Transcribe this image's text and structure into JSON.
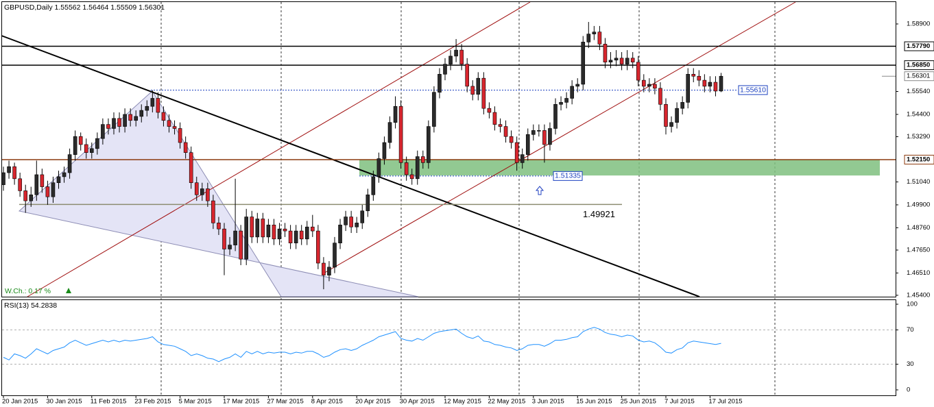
{
  "chart_data": [
    {
      "type": "candlestick",
      "title": "GBPUSD,Daily 1.55562 1.56464 1.55509 1.56301",
      "categories": [
        "20 Jan 2015",
        null,
        null,
        null,
        null,
        null,
        null,
        null,
        "30 Jan 2015",
        null,
        null,
        null,
        null,
        null,
        null,
        null,
        "11 Feb 2015",
        null,
        null,
        null,
        null,
        null,
        null,
        null,
        "23 Feb 2015",
        null,
        null,
        null,
        null,
        null,
        null,
        null,
        "5 Mar 2015",
        null,
        null,
        null,
        null,
        null,
        null,
        null,
        "17 Mar 2015",
        null,
        null,
        null,
        null,
        null,
        null,
        null,
        "27 Mar 2015",
        null,
        null,
        null,
        null,
        null,
        null,
        null,
        "8 Apr 2015",
        null,
        null,
        null,
        null,
        null,
        null,
        null,
        "20 Apr 2015",
        null,
        null,
        null,
        null,
        null,
        null,
        null,
        "30 Apr 2015",
        null,
        null,
        null,
        null,
        null,
        null,
        null,
        "12 May 2015",
        null,
        null,
        null,
        null,
        null,
        null,
        null,
        "22 May 2015",
        null,
        null,
        null,
        null,
        null,
        null,
        null,
        "3 Jun 2015",
        null,
        null,
        null,
        null,
        null,
        null,
        null,
        "15 Jun 2015",
        null,
        null,
        null,
        null,
        null,
        null,
        null,
        "25 Jun 2015",
        null,
        null,
        null,
        null,
        null,
        null,
        null,
        "7 Jul 2015",
        null,
        null,
        null,
        null,
        null,
        null,
        null,
        "17 Jul 2015",
        null,
        null
      ],
      "ohlc": [
        [
          1.509,
          1.518,
          1.506,
          1.515
        ],
        [
          1.515,
          1.521,
          1.512,
          1.518
        ],
        [
          1.518,
          1.52,
          1.509,
          1.512
        ],
        [
          1.512,
          1.515,
          1.503,
          1.506
        ],
        [
          1.506,
          1.509,
          1.495,
          1.501
        ],
        [
          1.501,
          1.508,
          1.498,
          1.504
        ],
        [
          1.504,
          1.521,
          1.501,
          1.514
        ],
        [
          1.514,
          1.517,
          1.505,
          1.508
        ],
        [
          1.508,
          1.511,
          1.499,
          1.503
        ],
        [
          1.503,
          1.513,
          1.5,
          1.51
        ],
        [
          1.51,
          1.516,
          1.507,
          1.513
        ],
        [
          1.513,
          1.518,
          1.51,
          1.515
        ],
        [
          1.515,
          1.527,
          1.512,
          1.524
        ],
        [
          1.524,
          1.536,
          1.521,
          1.533
        ],
        [
          1.533,
          1.535,
          1.526,
          1.529
        ],
        [
          1.529,
          1.532,
          1.522,
          1.525
        ],
        [
          1.525,
          1.53,
          1.522,
          1.527
        ],
        [
          1.527,
          1.535,
          1.524,
          1.532
        ],
        [
          1.532,
          1.542,
          1.529,
          1.539
        ],
        [
          1.539,
          1.542,
          1.534,
          1.537
        ],
        [
          1.537,
          1.545,
          1.534,
          1.542
        ],
        [
          1.542,
          1.545,
          1.535,
          1.538
        ],
        [
          1.538,
          1.547,
          1.535,
          1.544
        ],
        [
          1.544,
          1.547,
          1.538,
          1.541
        ],
        [
          1.541,
          1.546,
          1.538,
          1.543
        ],
        [
          1.543,
          1.549,
          1.54,
          1.546
        ],
        [
          1.546,
          1.551,
          1.543,
          1.548
        ],
        [
          1.548,
          1.556,
          1.545,
          1.552
        ],
        [
          1.552,
          1.555,
          1.542,
          1.545
        ],
        [
          1.545,
          1.548,
          1.538,
          1.541
        ],
        [
          1.541,
          1.544,
          1.535,
          1.538
        ],
        [
          1.538,
          1.541,
          1.534,
          1.537
        ],
        [
          1.537,
          1.54,
          1.527,
          1.53
        ],
        [
          1.53,
          1.533,
          1.522,
          1.525
        ],
        [
          1.525,
          1.528,
          1.507,
          1.51
        ],
        [
          1.51,
          1.513,
          1.501,
          1.504
        ],
        [
          1.504,
          1.51,
          1.501,
          1.507
        ],
        [
          1.507,
          1.51,
          1.498,
          1.501
        ],
        [
          1.501,
          1.504,
          1.487,
          1.49
        ],
        [
          1.49,
          1.493,
          1.484,
          1.487
        ],
        [
          1.487,
          1.49,
          1.464,
          1.477
        ],
        [
          1.477,
          1.483,
          1.474,
          1.479
        ],
        [
          1.479,
          1.512,
          1.476,
          1.486
        ],
        [
          1.486,
          1.489,
          1.469,
          1.472
        ],
        [
          1.472,
          1.497,
          1.469,
          1.493
        ],
        [
          1.493,
          1.496,
          1.48,
          1.483
        ],
        [
          1.483,
          1.495,
          1.48,
          1.492
        ],
        [
          1.492,
          1.495,
          1.48,
          1.483
        ],
        [
          1.483,
          1.492,
          1.48,
          1.489
        ],
        [
          1.489,
          1.492,
          1.479,
          1.482
        ],
        [
          1.482,
          1.49,
          1.479,
          1.487
        ],
        [
          1.487,
          1.49,
          1.483,
          1.486
        ],
        [
          1.486,
          1.489,
          1.477,
          1.48
        ],
        [
          1.48,
          1.489,
          1.477,
          1.486
        ],
        [
          1.486,
          1.489,
          1.479,
          1.482
        ],
        [
          1.482,
          1.491,
          1.479,
          1.488
        ],
        [
          1.488,
          1.494,
          1.483,
          1.486
        ],
        [
          1.486,
          1.489,
          1.467,
          1.47
        ],
        [
          1.47,
          1.473,
          1.457,
          1.464
        ],
        [
          1.464,
          1.471,
          1.461,
          1.468
        ],
        [
          1.468,
          1.483,
          1.465,
          1.48
        ],
        [
          1.48,
          1.492,
          1.477,
          1.489
        ],
        [
          1.489,
          1.496,
          1.486,
          1.493
        ],
        [
          1.493,
          1.496,
          1.485,
          1.488
        ],
        [
          1.488,
          1.493,
          1.485,
          1.49
        ],
        [
          1.49,
          1.499,
          1.487,
          1.496
        ],
        [
          1.496,
          1.507,
          1.493,
          1.504
        ],
        [
          1.504,
          1.516,
          1.501,
          1.513
        ],
        [
          1.513,
          1.525,
          1.51,
          1.522
        ],
        [
          1.522,
          1.533,
          1.519,
          1.53
        ],
        [
          1.53,
          1.543,
          1.527,
          1.54
        ],
        [
          1.54,
          1.553,
          1.537,
          1.548
        ],
        [
          1.548,
          1.551,
          1.517,
          1.52
        ],
        [
          1.52,
          1.523,
          1.511,
          1.514
        ],
        [
          1.514,
          1.517,
          1.509,
          1.512
        ],
        [
          1.512,
          1.526,
          1.509,
          1.523
        ],
        [
          1.523,
          1.526,
          1.517,
          1.52
        ],
        [
          1.52,
          1.541,
          1.517,
          1.538
        ],
        [
          1.538,
          1.558,
          1.535,
          1.555
        ],
        [
          1.555,
          1.567,
          1.552,
          1.564
        ],
        [
          1.564,
          1.572,
          1.561,
          1.569
        ],
        [
          1.569,
          1.576,
          1.566,
          1.573
        ],
        [
          1.573,
          1.5815,
          1.57,
          1.576
        ],
        [
          1.576,
          1.579,
          1.566,
          1.569
        ],
        [
          1.569,
          1.572,
          1.555,
          1.558
        ],
        [
          1.558,
          1.561,
          1.551,
          1.554
        ],
        [
          1.554,
          1.565,
          1.551,
          1.562
        ],
        [
          1.562,
          1.565,
          1.544,
          1.547
        ],
        [
          1.547,
          1.55,
          1.542,
          1.545
        ],
        [
          1.545,
          1.548,
          1.536,
          1.539
        ],
        [
          1.539,
          1.542,
          1.535,
          1.538
        ],
        [
          1.538,
          1.541,
          1.53,
          1.533
        ],
        [
          1.533,
          1.536,
          1.527,
          1.53
        ],
        [
          1.53,
          1.533,
          1.516,
          1.52
        ],
        [
          1.52,
          1.527,
          1.517,
          1.524
        ],
        [
          1.524,
          1.537,
          1.521,
          1.534
        ],
        [
          1.534,
          1.539,
          1.531,
          1.536
        ],
        [
          1.536,
          1.539,
          1.533,
          1.536
        ],
        [
          1.536,
          1.539,
          1.52,
          1.529
        ],
        [
          1.529,
          1.54,
          1.526,
          1.537
        ],
        [
          1.537,
          1.552,
          1.534,
          1.549
        ],
        [
          1.549,
          1.553,
          1.546,
          1.55
        ],
        [
          1.55,
          1.555,
          1.547,
          1.552
        ],
        [
          1.552,
          1.561,
          1.549,
          1.558
        ],
        [
          1.558,
          1.562,
          1.555,
          1.559
        ],
        [
          1.559,
          1.583,
          1.556,
          1.58
        ],
        [
          1.58,
          1.59,
          1.577,
          1.584
        ],
        [
          1.584,
          1.588,
          1.581,
          1.585
        ],
        [
          1.585,
          1.588,
          1.576,
          1.579
        ],
        [
          1.579,
          1.582,
          1.567,
          1.57
        ],
        [
          1.57,
          1.575,
          1.567,
          1.571
        ],
        [
          1.571,
          1.576,
          1.568,
          1.572
        ],
        [
          1.572,
          1.575,
          1.566,
          1.569
        ],
        [
          1.569,
          1.576,
          1.566,
          1.572
        ],
        [
          1.572,
          1.575,
          1.567,
          1.57
        ],
        [
          1.57,
          1.573,
          1.558,
          1.561
        ],
        [
          1.561,
          1.564,
          1.555,
          1.558
        ],
        [
          1.558,
          1.562,
          1.555,
          1.559
        ],
        [
          1.559,
          1.562,
          1.554,
          1.557
        ],
        [
          1.557,
          1.56,
          1.546,
          1.549
        ],
        [
          1.549,
          1.552,
          1.534,
          1.538
        ],
        [
          1.538,
          1.543,
          1.535,
          1.54
        ],
        [
          1.54,
          1.55,
          1.537,
          1.547
        ],
        [
          1.547,
          1.553,
          1.544,
          1.55
        ],
        [
          1.55,
          1.567,
          1.547,
          1.564
        ],
        [
          1.564,
          1.567,
          1.56,
          1.563
        ],
        [
          1.563,
          1.566,
          1.558,
          1.561
        ],
        [
          1.561,
          1.564,
          1.555,
          1.558
        ],
        [
          1.558,
          1.563,
          1.555,
          1.56
        ],
        [
          1.56,
          1.563,
          1.553,
          1.5556
        ],
        [
          1.55562,
          1.56464,
          1.55509,
          1.56301
        ]
      ],
      "up_color": "#2b2b2b",
      "down_color": "#d7262e",
      "ylim": [
        1.4533,
        1.5999
      ],
      "yticks": [
        {
          "value": 1.589,
          "label": "1.58900"
        },
        {
          "value": 1.5554,
          "label": "1.55540"
        },
        {
          "value": 1.544,
          "label": "1.54400"
        },
        {
          "value": 1.5329,
          "label": "1.53290"
        },
        {
          "value": 1.5104,
          "label": "1.51040"
        },
        {
          "value": 1.499,
          "label": "1.49900"
        },
        {
          "value": 1.4876,
          "label": "1.48760"
        },
        {
          "value": 1.4765,
          "label": "1.47650"
        },
        {
          "value": 1.4651,
          "label": "1.46510"
        },
        {
          "value": 1.454,
          "label": "1.45400"
        }
      ],
      "levels": [
        {
          "value": 1.5779,
          "label": "1.57790",
          "color": "#000000"
        },
        {
          "value": 1.5685,
          "label": "1.56850",
          "color": "#000000"
        },
        {
          "value": 1.5215,
          "label": "1.52150",
          "color": "#8b3a0e"
        }
      ],
      "price_lines": [
        {
          "value": 1.5561,
          "label": "1.55610"
        },
        {
          "value": 1.51335,
          "label": "1.51335"
        }
      ],
      "support": {
        "value": 1.49921,
        "label": "1.49921"
      },
      "current": {
        "value": 1.56301,
        "label": "1.56301"
      },
      "zone": [
        1.5136,
        1.5215
      ],
      "annotation": "W.Ch.: 0.17 %"
    },
    {
      "type": "line",
      "title": "RSI(13) 54.2838",
      "values": [
        38,
        35,
        42,
        40,
        37,
        42,
        48,
        45,
        42,
        46,
        48,
        50,
        55,
        58,
        55,
        52,
        54,
        56,
        58,
        56,
        58,
        56,
        58,
        57,
        58,
        59,
        60,
        62,
        56,
        53,
        52,
        51,
        48,
        45,
        40,
        42,
        40,
        37,
        36,
        33,
        36,
        38,
        42,
        38,
        45,
        42,
        45,
        42,
        44,
        43,
        44,
        44,
        42,
        44,
        43,
        45,
        45,
        42,
        38,
        40,
        44,
        47,
        48,
        46,
        48,
        52,
        55,
        58,
        62,
        64,
        66,
        68,
        60,
        58,
        57,
        60,
        58,
        62,
        66,
        68,
        69,
        70,
        71,
        66,
        62,
        60,
        63,
        57,
        56,
        53,
        52,
        50,
        49,
        46,
        48,
        52,
        53,
        53,
        51,
        54,
        58,
        58,
        59,
        61,
        62,
        68,
        71,
        73,
        71,
        67,
        65,
        64,
        62,
        64,
        63,
        58,
        56,
        57,
        55,
        50,
        44,
        43,
        47,
        49,
        55,
        57,
        56,
        55,
        54,
        53,
        54.2838
      ],
      "color": "#1e90ff",
      "ylim": [
        0,
        100
      ],
      "yticks": [
        100,
        70,
        30,
        0
      ]
    }
  ]
}
